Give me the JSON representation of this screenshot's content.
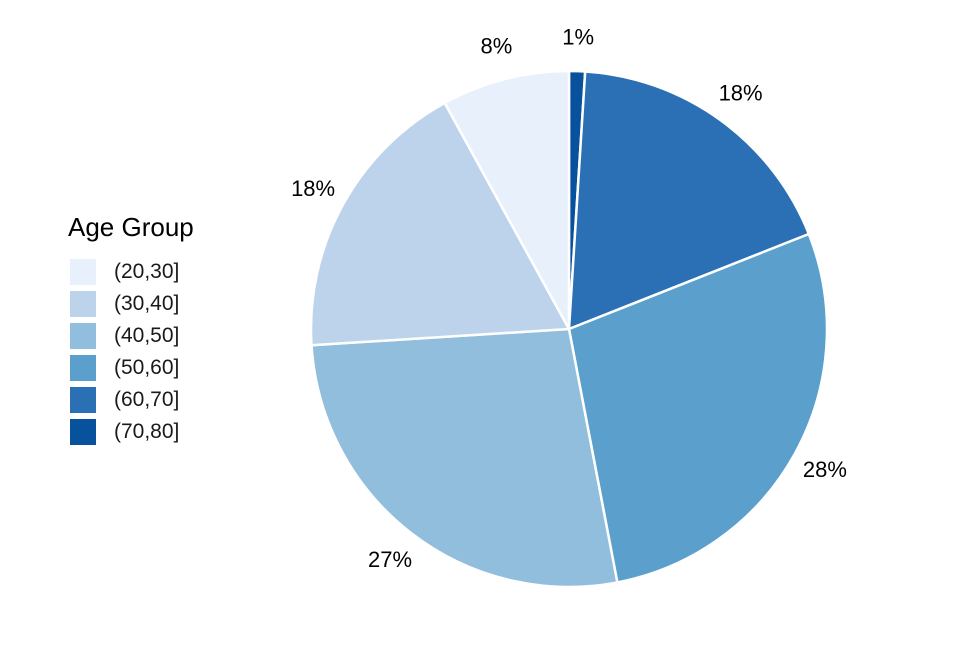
{
  "chart_data": {
    "type": "pie",
    "title": "",
    "legend_title": "Age Group",
    "legend_position": "left",
    "start": "12 o'clock",
    "direction": "clockwise",
    "slices": [
      {
        "label": "(70,80]",
        "value": 1,
        "text": "1%",
        "color": "#08519C"
      },
      {
        "label": "(60,70]",
        "value": 18,
        "text": "18%",
        "color": "#2B70B5"
      },
      {
        "label": "(50,60]",
        "value": 28,
        "text": "28%",
        "color": "#5BA0CC"
      },
      {
        "label": "(40,50]",
        "value": 27,
        "text": "27%",
        "color": "#91BEDC"
      },
      {
        "label": "(30,40]",
        "value": 18,
        "text": "18%",
        "color": "#BDD3EC"
      },
      {
        "label": "(20,30]",
        "value": 8,
        "text": "8%",
        "color": "#E8F0FC"
      }
    ],
    "legend_order": [
      "(20,30]",
      "(30,40]",
      "(40,50]",
      "(50,60]",
      "(60,70]",
      "(70,80]"
    ]
  }
}
